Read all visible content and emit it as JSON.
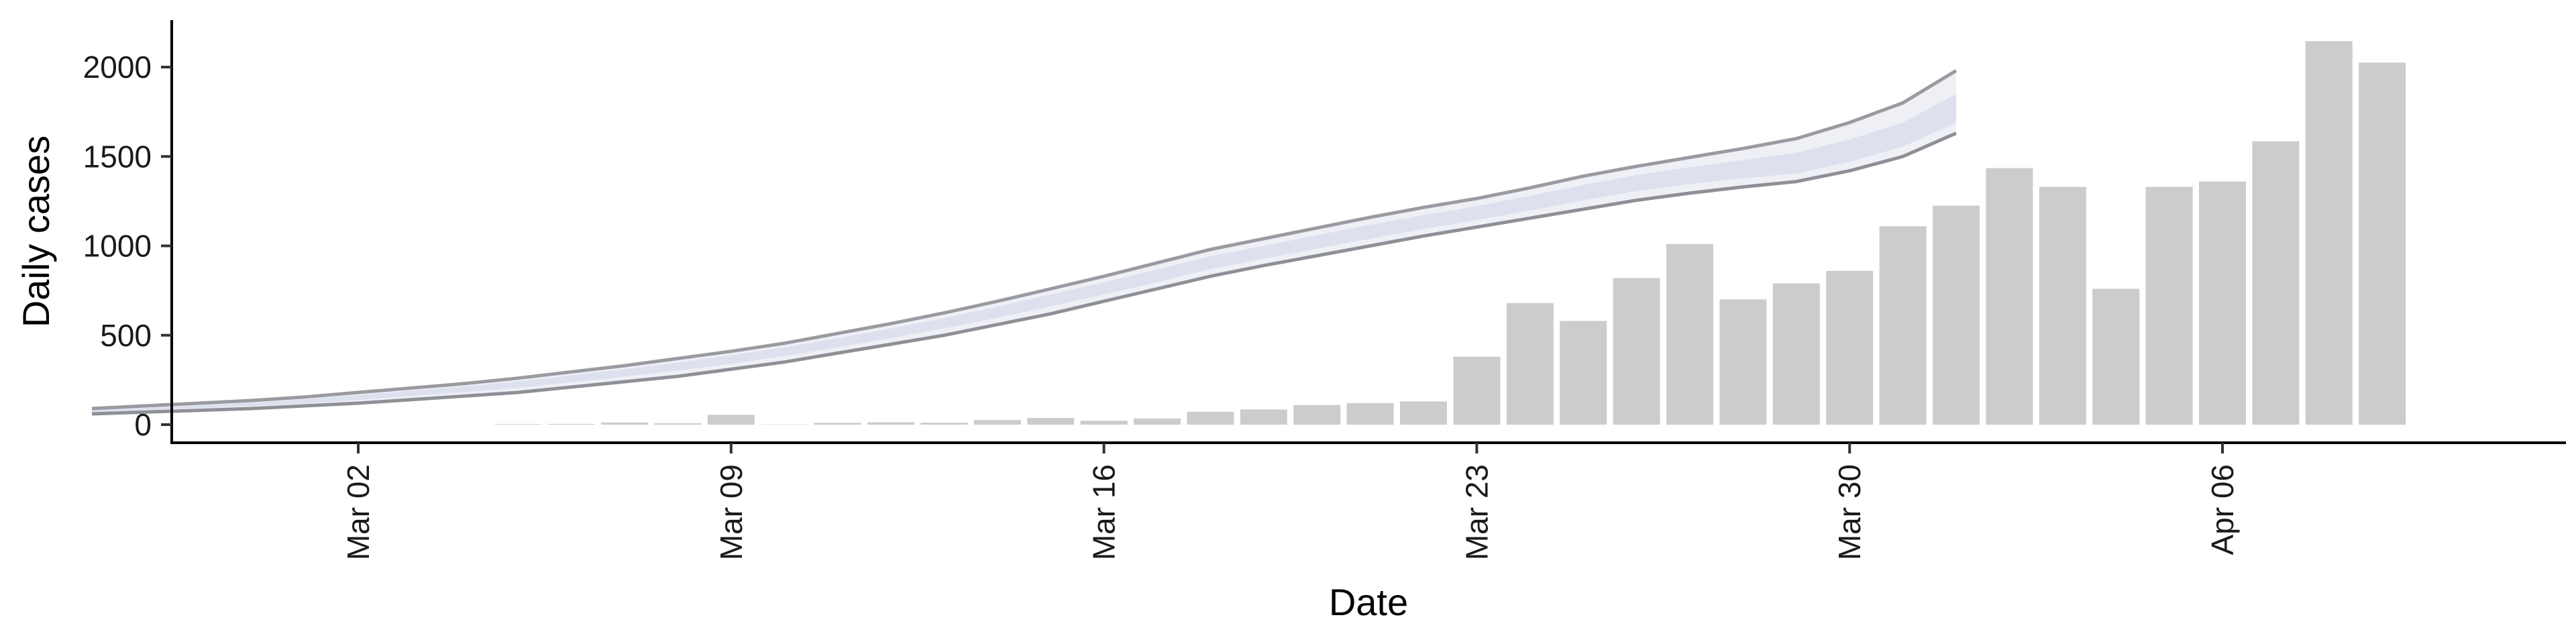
{
  "chart_data": {
    "type": "bar",
    "xlabel": "Date",
    "ylabel": "Daily cases",
    "ylim": [
      -90,
      2260
    ],
    "grid": false,
    "legend": "none",
    "x_axis": {
      "type": "date",
      "range": [
        "2020-02-26",
        "2020-04-14"
      ],
      "ticks": [
        {
          "date": "2020-03-02",
          "label": "Mar 02"
        },
        {
          "date": "2020-03-09",
          "label": "Mar 09"
        },
        {
          "date": "2020-03-16",
          "label": "Mar 16"
        },
        {
          "date": "2020-03-23",
          "label": "Mar 23"
        },
        {
          "date": "2020-03-30",
          "label": "Mar 30"
        },
        {
          "date": "2020-04-06",
          "label": "Apr 06"
        }
      ]
    },
    "y_ticks": [
      0,
      500,
      1000,
      1500,
      2000
    ],
    "bars": {
      "color": "#cccccc",
      "dates": [
        "2020-03-05",
        "2020-03-06",
        "2020-03-07",
        "2020-03-08",
        "2020-03-09",
        "2020-03-10",
        "2020-03-11",
        "2020-03-12",
        "2020-03-13",
        "2020-03-14",
        "2020-03-15",
        "2020-03-16",
        "2020-03-17",
        "2020-03-18",
        "2020-03-19",
        "2020-03-20",
        "2020-03-21",
        "2020-03-22",
        "2020-03-23",
        "2020-03-24",
        "2020-03-25",
        "2020-03-26",
        "2020-03-27",
        "2020-03-28",
        "2020-03-29",
        "2020-03-30",
        "2020-03-31",
        "2020-04-01",
        "2020-04-02",
        "2020-04-03",
        "2020-04-04",
        "2020-04-05",
        "2020-04-06",
        "2020-04-07",
        "2020-04-08",
        "2020-04-09",
        "2020-04-10",
        "2020-04-11"
      ],
      "values": [
        3,
        4,
        12,
        8,
        55,
        2,
        10,
        13,
        11,
        26,
        38,
        22,
        35,
        72,
        85,
        110,
        120,
        130,
        380,
        680,
        580,
        820,
        1010,
        700,
        790,
        860,
        1110,
        1225,
        1435,
        1330,
        760,
        1330,
        1360,
        1585,
        2145,
        2025,
        0,
        0
      ]
    },
    "forecast": {
      "dates": [
        "2020-02-26",
        "2020-02-27",
        "2020-02-28",
        "2020-02-29",
        "2020-03-01",
        "2020-03-02",
        "2020-03-03",
        "2020-03-04",
        "2020-03-05",
        "2020-03-06",
        "2020-03-07",
        "2020-03-08",
        "2020-03-09",
        "2020-03-10",
        "2020-03-11",
        "2020-03-12",
        "2020-03-13",
        "2020-03-14",
        "2020-03-15",
        "2020-03-16",
        "2020-03-17",
        "2020-03-18",
        "2020-03-19",
        "2020-03-20",
        "2020-03-21",
        "2020-03-22",
        "2020-03-23",
        "2020-03-24",
        "2020-03-25",
        "2020-03-26",
        "2020-03-27",
        "2020-03-28",
        "2020-03-29",
        "2020-03-30",
        "2020-03-31",
        "2020-04-01"
      ],
      "upper": [
        90,
        105,
        120,
        135,
        155,
        180,
        205,
        230,
        260,
        295,
        330,
        370,
        410,
        455,
        510,
        565,
        625,
        690,
        760,
        830,
        905,
        980,
        1040,
        1100,
        1160,
        1215,
        1265,
        1325,
        1390,
        1445,
        1495,
        1545,
        1600,
        1690,
        1800,
        1980
      ],
      "inner_upper": [
        82,
        96,
        110,
        124,
        142,
        166,
        190,
        214,
        242,
        276,
        310,
        348,
        388,
        432,
        484,
        538,
        596,
        660,
        728,
        796,
        868,
        942,
        1000,
        1060,
        1118,
        1172,
        1222,
        1280,
        1340,
        1396,
        1440,
        1480,
        1520,
        1595,
        1690,
        1850
      ],
      "median": [
        75,
        88,
        100,
        114,
        130,
        152,
        175,
        198,
        224,
        256,
        290,
        326,
        364,
        408,
        458,
        510,
        566,
        628,
        694,
        762,
        832,
        906,
        964,
        1022,
        1080,
        1134,
        1184,
        1240,
        1300,
        1356,
        1400,
        1435,
        1470,
        1540,
        1630,
        1770
      ],
      "inner_lower": [
        68,
        80,
        92,
        104,
        118,
        138,
        160,
        182,
        206,
        236,
        268,
        302,
        340,
        384,
        432,
        484,
        538,
        598,
        662,
        728,
        796,
        870,
        928,
        984,
        1040,
        1094,
        1144,
        1198,
        1254,
        1306,
        1346,
        1378,
        1405,
        1470,
        1555,
        1690
      ],
      "lower": [
        60,
        70,
        80,
        90,
        105,
        120,
        140,
        160,
        180,
        210,
        240,
        270,
        310,
        350,
        400,
        450,
        500,
        560,
        620,
        690,
        760,
        830,
        890,
        945,
        1000,
        1055,
        1105,
        1155,
        1205,
        1255,
        1295,
        1330,
        1360,
        1420,
        1500,
        1630
      ]
    }
  }
}
